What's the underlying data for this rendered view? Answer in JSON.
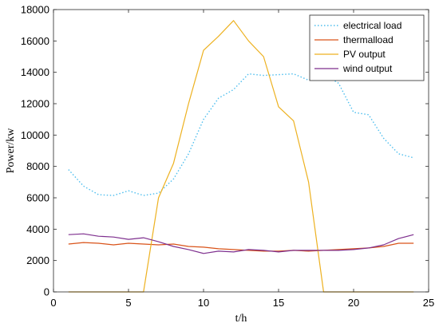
{
  "chart_data": {
    "type": "line",
    "xlabel": "t/h",
    "ylabel": "Power/kw",
    "xlim": [
      0,
      25
    ],
    "ylim": [
      0,
      18000
    ],
    "xticks": [
      0,
      5,
      10,
      15,
      20,
      25
    ],
    "yticks": [
      0,
      2000,
      4000,
      6000,
      8000,
      10000,
      12000,
      14000,
      16000,
      18000
    ],
    "grid": false,
    "legend_position": "top-right",
    "x": [
      1,
      2,
      3,
      4,
      5,
      6,
      7,
      8,
      9,
      10,
      11,
      12,
      13,
      14,
      15,
      16,
      17,
      18,
      19,
      20,
      21,
      22,
      23,
      24
    ],
    "series": [
      {
        "name": "electrical load",
        "color": "#4DBEEE",
        "style": "dotted",
        "values": [
          7800,
          6750,
          6200,
          6150,
          6450,
          6150,
          6300,
          7200,
          8800,
          11000,
          12350,
          12900,
          13900,
          13800,
          13850,
          13900,
          13500,
          13900,
          13300,
          11450,
          11300,
          9800,
          8800,
          8550
        ]
      },
      {
        "name": "thermalload",
        "color": "#D95319",
        "style": "solid",
        "values": [
          3050,
          3150,
          3100,
          3000,
          3100,
          3050,
          3000,
          3050,
          2900,
          2850,
          2750,
          2700,
          2650,
          2600,
          2600,
          2650,
          2600,
          2650,
          2700,
          2750,
          2800,
          2900,
          3100,
          3100
        ]
      },
      {
        "name": "PV output",
        "color": "#EDB120",
        "style": "solid",
        "values": [
          0,
          0,
          0,
          0,
          0,
          0,
          6000,
          8200,
          12000,
          15400,
          16300,
          17300,
          16000,
          15000,
          11800,
          10900,
          7000,
          0,
          0,
          0,
          0,
          0,
          0,
          0
        ]
      },
      {
        "name": "wind output",
        "color": "#7E2F8E",
        "style": "solid",
        "values": [
          3650,
          3700,
          3550,
          3500,
          3350,
          3450,
          3200,
          2900,
          2700,
          2450,
          2600,
          2550,
          2700,
          2650,
          2550,
          2650,
          2650,
          2650,
          2650,
          2700,
          2800,
          3000,
          3400,
          3650
        ]
      }
    ]
  }
}
